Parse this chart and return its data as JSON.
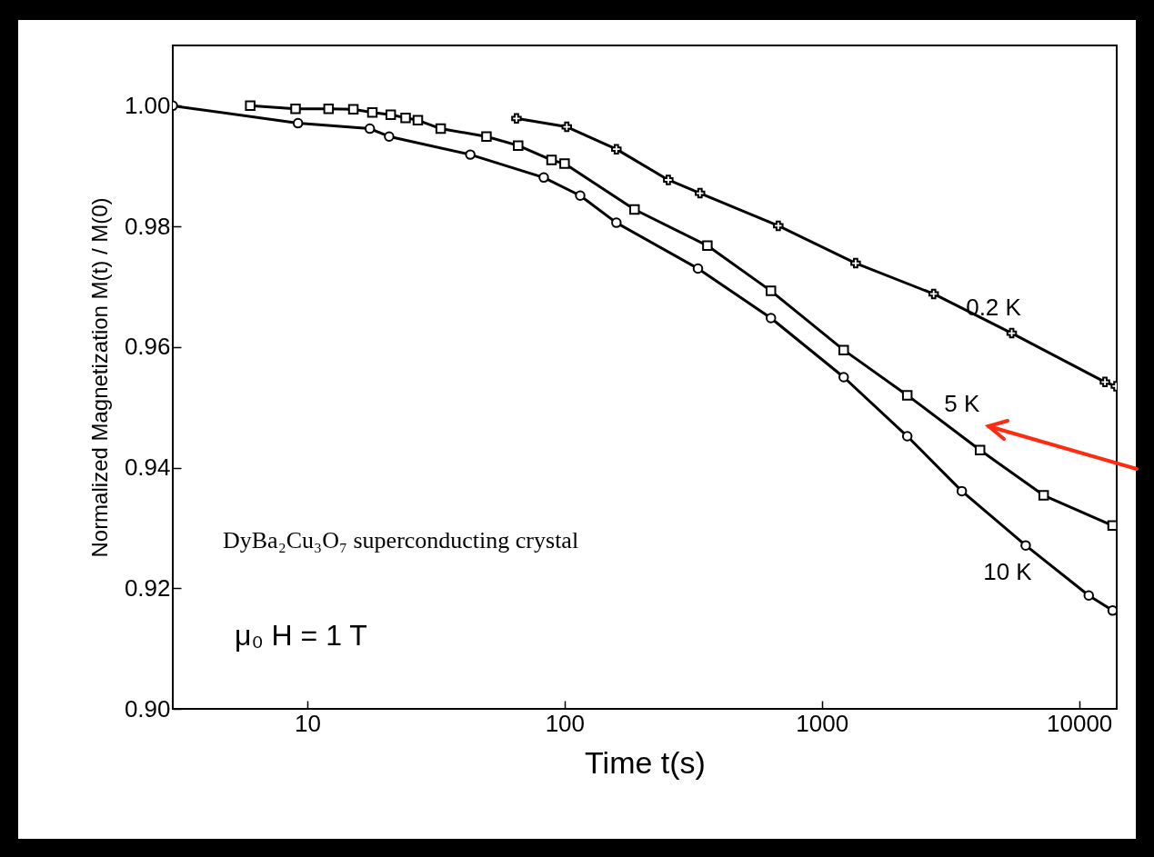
{
  "chart_data": {
    "type": "line",
    "xlabel": "Time t(s)",
    "ylabel": "Normalized Magnetization M(t) / M(0)",
    "log": "x",
    "grid": false,
    "line_style": "solid",
    "xlim": [
      3,
      14000
    ],
    "xticks": [
      10,
      100,
      1000,
      10000
    ],
    "ylim": [
      0.9,
      1.01
    ],
    "yticks": [
      {
        "value": 0.9,
        "label": "0.90"
      },
      {
        "value": 0.92,
        "label": "0.92"
      },
      {
        "value": 0.94,
        "label": "0.94"
      },
      {
        "value": 0.96,
        "label": "0.96"
      },
      {
        "value": 0.98,
        "label": "0.98"
      },
      {
        "value": 1,
        "label": "1.00"
      }
    ],
    "series": [
      {
        "name": "0.2 K",
        "color": "#000000",
        "marker": "cross",
        "x": [
          65,
          102,
          159,
          253,
          336,
          677,
          1353,
          2720,
          5470,
          12600,
          13900
        ],
        "values": [
          0.9979,
          0.9965,
          0.9928,
          0.9877,
          0.9855,
          0.9801,
          0.9739,
          0.9688,
          0.9623,
          0.9542,
          0.9535
        ]
      },
      {
        "name": "5 K",
        "color": "#000000",
        "marker": "square",
        "x": [
          6,
          9,
          12.1,
          15.1,
          17.9,
          21.1,
          24.1,
          26.9,
          33,
          49.7,
          66,
          89,
          100,
          187,
          359,
          634,
          1216,
          2148,
          4120,
          7280,
          13500
        ],
        "values": [
          1,
          0.9995,
          0.9995,
          0.9994,
          0.9989,
          0.9985,
          0.998,
          0.9976,
          0.9962,
          0.9949,
          0.9934,
          0.991,
          0.9904,
          0.9828,
          0.9768,
          0.9693,
          0.9595,
          0.952,
          0.9429,
          0.9354,
          0.9304
        ]
      },
      {
        "name": "10 K",
        "color": "#000000",
        "marker": "circle",
        "x": [
          3,
          9.2,
          17.5,
          20.8,
          43,
          83,
          115,
          159,
          330,
          634,
          1216,
          2148,
          3500,
          6200,
          10900,
          13500
        ],
        "values": [
          1,
          0.9971,
          0.9962,
          0.9949,
          0.9919,
          0.9881,
          0.9851,
          0.9806,
          0.973,
          0.9648,
          0.955,
          0.9452,
          0.9361,
          0.9271,
          0.9188,
          0.9163
        ]
      }
    ],
    "annotations": [
      "DyBa₂Cu₃O₇ superconducting crystal",
      "μ₀ H = 1 T"
    ]
  }
}
